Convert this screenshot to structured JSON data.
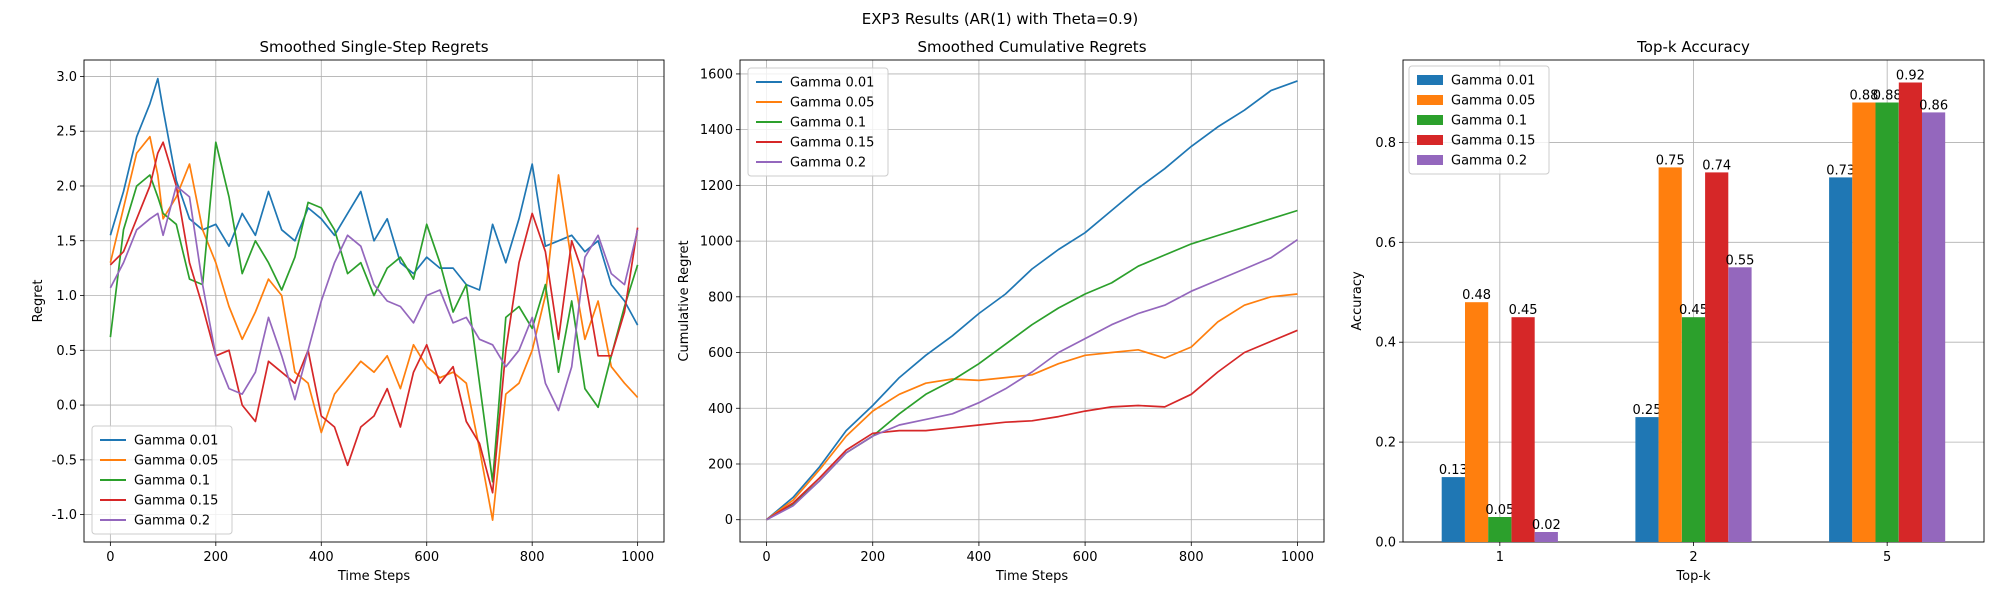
{
  "figure": {
    "suptitle": "EXP3 Results (AR(1) with Theta=0.9)"
  },
  "colors": {
    "s1": "#1f77b4",
    "s2": "#ff7f0e",
    "s3": "#2ca02c",
    "s4": "#d62728",
    "s5": "#9467bd"
  },
  "chart_data": [
    {
      "type": "line",
      "title": "Smoothed Single-Step Regrets",
      "xlabel": "Time Steps",
      "ylabel": "Regret",
      "xlim": [
        -50,
        1050
      ],
      "ylim": [
        -1.25,
        3.15
      ],
      "xticks": [
        0,
        200,
        400,
        600,
        800,
        1000
      ],
      "yticks": [
        -1.0,
        -0.5,
        0.0,
        0.5,
        1.0,
        1.5,
        2.0,
        2.5,
        3.0
      ],
      "grid": true,
      "legend": "lower-left",
      "x": [
        0,
        25,
        50,
        75,
        90,
        100,
        125,
        150,
        175,
        200,
        225,
        250,
        275,
        300,
        325,
        350,
        375,
        400,
        425,
        450,
        475,
        500,
        525,
        550,
        575,
        600,
        625,
        650,
        675,
        700,
        725,
        750,
        775,
        800,
        825,
        850,
        875,
        900,
        925,
        950,
        975,
        1000
      ],
      "series": [
        {
          "name": "Gamma 0.01",
          "color_key": "s1",
          "values": [
            1.55,
            1.95,
            2.45,
            2.75,
            2.98,
            2.7,
            2.05,
            1.7,
            1.6,
            1.65,
            1.45,
            1.75,
            1.55,
            1.95,
            1.6,
            1.5,
            1.8,
            1.7,
            1.55,
            1.75,
            1.95,
            1.5,
            1.7,
            1.3,
            1.2,
            1.35,
            1.25,
            1.25,
            1.1,
            1.05,
            1.65,
            1.3,
            1.7,
            2.2,
            1.45,
            1.5,
            1.55,
            1.4,
            1.5,
            1.1,
            0.95,
            0.73
          ]
        },
        {
          "name": "Gamma 0.05",
          "color_key": "s2",
          "values": [
            1.3,
            1.8,
            2.3,
            2.45,
            2.1,
            1.7,
            1.9,
            2.2,
            1.6,
            1.3,
            0.9,
            0.6,
            0.85,
            1.15,
            1.0,
            0.3,
            0.2,
            -0.25,
            0.1,
            0.25,
            0.4,
            0.3,
            0.45,
            0.15,
            0.55,
            0.35,
            0.25,
            0.3,
            0.2,
            -0.4,
            -1.05,
            0.1,
            0.2,
            0.5,
            1.0,
            2.1,
            1.3,
            0.6,
            0.95,
            0.35,
            0.2,
            0.07
          ]
        },
        {
          "name": "Gamma 0.1",
          "color_key": "s3",
          "values": [
            0.62,
            1.6,
            2.0,
            2.1,
            1.9,
            1.75,
            1.65,
            1.15,
            1.1,
            2.4,
            1.9,
            1.2,
            1.5,
            1.3,
            1.05,
            1.35,
            1.85,
            1.8,
            1.6,
            1.2,
            1.3,
            1.0,
            1.25,
            1.35,
            1.15,
            1.65,
            1.3,
            0.85,
            1.1,
            0.2,
            -0.7,
            0.8,
            0.9,
            0.7,
            1.1,
            0.3,
            0.95,
            0.15,
            -0.02,
            0.45,
            0.9,
            1.28
          ]
        },
        {
          "name": "Gamma 0.15",
          "color_key": "s4",
          "values": [
            1.28,
            1.4,
            1.7,
            2.0,
            2.3,
            2.4,
            2.0,
            1.3,
            0.9,
            0.45,
            0.5,
            0.0,
            -0.15,
            0.4,
            0.3,
            0.2,
            0.5,
            -0.1,
            -0.2,
            -0.55,
            -0.2,
            -0.1,
            0.15,
            -0.2,
            0.3,
            0.55,
            0.2,
            0.35,
            -0.15,
            -0.35,
            -0.8,
            0.5,
            1.3,
            1.75,
            1.4,
            0.6,
            1.5,
            1.15,
            0.45,
            0.45,
            0.85,
            1.62
          ]
        },
        {
          "name": "Gamma 0.2",
          "color_key": "s5",
          "values": [
            1.07,
            1.3,
            1.6,
            1.7,
            1.75,
            1.55,
            2.0,
            1.9,
            1.1,
            0.45,
            0.15,
            0.1,
            0.3,
            0.8,
            0.45,
            0.05,
            0.5,
            0.95,
            1.3,
            1.55,
            1.45,
            1.1,
            0.95,
            0.9,
            0.75,
            1.0,
            1.05,
            0.75,
            0.8,
            0.6,
            0.55,
            0.35,
            0.5,
            0.8,
            0.2,
            -0.05,
            0.35,
            1.35,
            1.55,
            1.2,
            1.1,
            1.6
          ]
        }
      ]
    },
    {
      "type": "line",
      "title": "Smoothed Cumulative Regrets",
      "xlabel": "Time Steps",
      "ylabel": "Cumulative Regret",
      "xlim": [
        -50,
        1050
      ],
      "ylim": [
        -80,
        1650
      ],
      "xticks": [
        0,
        200,
        400,
        600,
        800,
        1000
      ],
      "yticks": [
        0,
        200,
        400,
        600,
        800,
        1000,
        1200,
        1400,
        1600
      ],
      "grid": true,
      "legend": "top-left",
      "x": [
        0,
        50,
        100,
        150,
        200,
        250,
        300,
        350,
        400,
        450,
        500,
        550,
        600,
        650,
        700,
        750,
        800,
        850,
        900,
        950,
        1000
      ],
      "series": [
        {
          "name": "Gamma 0.01",
          "color_key": "s1",
          "values": [
            0,
            80,
            190,
            320,
            410,
            510,
            590,
            660,
            740,
            810,
            900,
            970,
            1030,
            1110,
            1190,
            1260,
            1340,
            1410,
            1470,
            1540,
            1575
          ]
        },
        {
          "name": "Gamma 0.05",
          "color_key": "s2",
          "values": [
            0,
            70,
            180,
            300,
            390,
            450,
            490,
            505,
            500,
            510,
            520,
            560,
            590,
            600,
            610,
            580,
            620,
            710,
            770,
            800,
            810
          ]
        },
        {
          "name": "Gamma 0.1",
          "color_key": "s3",
          "values": [
            0,
            55,
            140,
            240,
            300,
            380,
            450,
            500,
            560,
            630,
            700,
            760,
            810,
            850,
            910,
            950,
            990,
            1020,
            1050,
            1080,
            1110
          ]
        },
        {
          "name": "Gamma 0.15",
          "color_key": "s4",
          "values": [
            0,
            60,
            150,
            250,
            310,
            320,
            320,
            330,
            340,
            350,
            355,
            370,
            390,
            405,
            410,
            405,
            450,
            530,
            600,
            640,
            680
          ]
        },
        {
          "name": "Gamma 0.2",
          "color_key": "s5",
          "values": [
            0,
            50,
            140,
            240,
            300,
            340,
            360,
            380,
            420,
            470,
            530,
            600,
            650,
            700,
            740,
            770,
            820,
            860,
            900,
            940,
            1005
          ]
        }
      ]
    },
    {
      "type": "bar",
      "title": "Top-k Accuracy",
      "xlabel": "Top-k",
      "ylabel": "Accuracy",
      "ylim": [
        0,
        0.965
      ],
      "yticks": [
        0.0,
        0.2,
        0.4,
        0.6,
        0.8
      ],
      "grid": true,
      "legend": "top-left",
      "categories": [
        "1",
        "2",
        "5"
      ],
      "series": [
        {
          "name": "Gamma 0.01",
          "color_key": "s1",
          "values": [
            0.13,
            0.25,
            0.73
          ],
          "labels": [
            "0.13",
            "0.25",
            "0.73"
          ]
        },
        {
          "name": "Gamma 0.05",
          "color_key": "s2",
          "values": [
            0.48,
            0.75,
            0.88
          ],
          "labels": [
            "0.48",
            "0.75",
            "0.88"
          ]
        },
        {
          "name": "Gamma 0.1",
          "color_key": "s3",
          "values": [
            0.05,
            0.45,
            0.88
          ],
          "labels": [
            "0.05",
            "0.45",
            "0.88"
          ]
        },
        {
          "name": "Gamma 0.15",
          "color_key": "s4",
          "values": [
            0.45,
            0.74,
            0.92
          ],
          "labels": [
            "0.45",
            "0.74",
            "0.92"
          ]
        },
        {
          "name": "Gamma 0.2",
          "color_key": "s5",
          "values": [
            0.02,
            0.55,
            0.86
          ],
          "labels": [
            "0.02",
            "0.55",
            "0.86"
          ]
        }
      ]
    }
  ]
}
